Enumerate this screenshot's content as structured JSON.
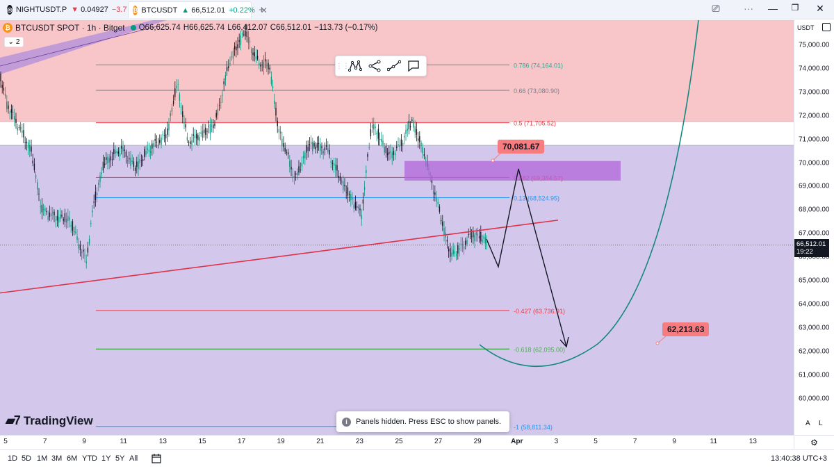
{
  "tabs": [
    {
      "symbol": "NIGHTUSDT.P",
      "price": "0.04927",
      "change": "−3.7",
      "direction": "down",
      "coin_color": "#131722",
      "coin_glyph": "◎"
    },
    {
      "symbol": "BTCUSDT",
      "price": "66,512.01",
      "change": "+0.22%",
      "direction": "up",
      "coin_color": "#f7931a",
      "coin_glyph": "₿"
    }
  ],
  "new_tab": "+",
  "legend": {
    "title": "BTCUSDT SPOT · 1h · Bitget",
    "o": "O66,625.74",
    "h": "H66,625.74",
    "l": "L66,412.07",
    "c": "C66,512.01",
    "chg": "−113.73 (−0.17%)",
    "indicator_count": "2"
  },
  "fib_levels": [
    {
      "label": "0.786 (74,164.01)",
      "price": 74164.01,
      "color": "#22ab94"
    },
    {
      "label": "0.66 (73,080.90)",
      "price": 73080.9,
      "color": "#787b86"
    },
    {
      "label": "0.5 (71,705.52)",
      "price": 71705.52,
      "color": "#f23645"
    },
    {
      "label": "0.382 (69,384.57)",
      "price": 69384.57,
      "color": "#f23645"
    },
    {
      "label": "0.13 (68,524.95)",
      "price": 68524.95,
      "color": "#2196f3"
    },
    {
      "label": "-0.427 (63,736.91)",
      "price": 63736.91,
      "color": "#f23645"
    },
    {
      "label": "-0.618 (62,095.00)",
      "price": 62095.0,
      "color": "#4caf50"
    },
    {
      "label": "-1 (58,811.34)",
      "price": 58811.34,
      "color": "#2196f3"
    }
  ],
  "callouts": [
    {
      "text": "70,081.67",
      "price": 70081.67
    },
    {
      "text": "62,213.63",
      "price": 62213.63
    }
  ],
  "toast": "Panels hidden. Press ESC to show panels.",
  "brand": "TradingView",
  "price_scale": {
    "currency": "USDT",
    "labels": [
      "75,000.00",
      "74,000.00",
      "73,000.00",
      "72,000.00",
      "71,000.00",
      "70,000.00",
      "69,000.00",
      "68,000.00",
      "67,000.00",
      "66,000.00",
      "65,000.00",
      "64,000.00",
      "63,000.00",
      "62,000.00",
      "61,000.00",
      "60,000.00"
    ],
    "current_price": "66,512.01",
    "countdown": "19:22",
    "auto": "A",
    "log": "L"
  },
  "time_axis": [
    "5",
    "7",
    "9",
    "11",
    "13",
    "15",
    "17",
    "19",
    "21",
    "23",
    "25",
    "27",
    "29",
    "Apr",
    "3",
    "5",
    "7",
    "9",
    "11",
    "13"
  ],
  "ranges": [
    "1D",
    "5D",
    "1M",
    "3M",
    "6M",
    "YTD",
    "1Y",
    "5Y",
    "All"
  ],
  "clock": "13:40:38 UTC+3",
  "colors": {
    "up": "#089981",
    "down": "#f23645",
    "upper_zone": "#f8c6c9",
    "lower_zone": "#d3c8eb",
    "supply_box": "#b266d9",
    "trendline": "#e0304a",
    "curve": "#13877f"
  }
}
